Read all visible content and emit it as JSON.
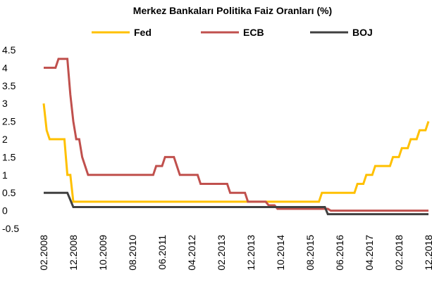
{
  "chart_data": {
    "type": "line",
    "title": "Merkez Bankaları Politika Faiz Oranları (%)",
    "categories": [
      "02.2008",
      null,
      null,
      null,
      null,
      null,
      null,
      null,
      null,
      null,
      "12.2008",
      null,
      null,
      null,
      null,
      null,
      null,
      null,
      null,
      null,
      "10.2009",
      null,
      null,
      null,
      null,
      null,
      null,
      null,
      null,
      null,
      "08.2010",
      null,
      null,
      null,
      null,
      null,
      null,
      null,
      null,
      null,
      "06.2011",
      null,
      null,
      null,
      null,
      null,
      null,
      null,
      null,
      null,
      "04.2012",
      null,
      null,
      null,
      null,
      null,
      null,
      null,
      null,
      null,
      "02.2013",
      null,
      null,
      null,
      null,
      null,
      null,
      null,
      null,
      null,
      "12.2013",
      null,
      null,
      null,
      null,
      null,
      null,
      null,
      null,
      null,
      "10.2014",
      null,
      null,
      null,
      null,
      null,
      null,
      null,
      null,
      null,
      "08.2015",
      null,
      null,
      null,
      null,
      null,
      null,
      null,
      null,
      null,
      "06.2016",
      null,
      null,
      null,
      null,
      null,
      null,
      null,
      null,
      null,
      "04.2017",
      null,
      null,
      null,
      null,
      null,
      null,
      null,
      null,
      null,
      "02.2018",
      null,
      null,
      null,
      null,
      null,
      null,
      null,
      null,
      null,
      "12.2018"
    ],
    "series": [
      {
        "name": "Fed",
        "color": "#ffc000",
        "values": [
          3,
          2.25,
          2,
          2,
          2,
          2,
          2,
          2,
          1,
          1,
          0.25,
          0.25,
          0.25,
          0.25,
          0.25,
          0.25,
          0.25,
          0.25,
          0.25,
          0.25,
          0.25,
          0.25,
          0.25,
          0.25,
          0.25,
          0.25,
          0.25,
          0.25,
          0.25,
          0.25,
          0.25,
          0.25,
          0.25,
          0.25,
          0.25,
          0.25,
          0.25,
          0.25,
          0.25,
          0.25,
          0.25,
          0.25,
          0.25,
          0.25,
          0.25,
          0.25,
          0.25,
          0.25,
          0.25,
          0.25,
          0.25,
          0.25,
          0.25,
          0.25,
          0.25,
          0.25,
          0.25,
          0.25,
          0.25,
          0.25,
          0.25,
          0.25,
          0.25,
          0.25,
          0.25,
          0.25,
          0.25,
          0.25,
          0.25,
          0.25,
          0.25,
          0.25,
          0.25,
          0.25,
          0.25,
          0.25,
          0.25,
          0.25,
          0.25,
          0.25,
          0.25,
          0.25,
          0.25,
          0.25,
          0.25,
          0.25,
          0.25,
          0.25,
          0.25,
          0.25,
          0.25,
          0.25,
          0.25,
          0.25,
          0.5,
          0.5,
          0.5,
          0.5,
          0.5,
          0.5,
          0.5,
          0.5,
          0.5,
          0.5,
          0.5,
          0.5,
          0.75,
          0.75,
          0.75,
          1,
          1,
          1,
          1.25,
          1.25,
          1.25,
          1.25,
          1.25,
          1.25,
          1.5,
          1.5,
          1.5,
          1.75,
          1.75,
          1.75,
          2,
          2,
          2,
          2.25,
          2.25,
          2.25,
          2.5
        ]
      },
      {
        "name": "ECB",
        "color": "#c0504d",
        "values": [
          4,
          4,
          4,
          4,
          4,
          4.25,
          4.25,
          4.25,
          4.25,
          3.25,
          2.5,
          2,
          2,
          1.5,
          1.25,
          1,
          1,
          1,
          1,
          1,
          1,
          1,
          1,
          1,
          1,
          1,
          1,
          1,
          1,
          1,
          1,
          1,
          1,
          1,
          1,
          1,
          1,
          1,
          1.25,
          1.25,
          1.25,
          1.5,
          1.5,
          1.5,
          1.5,
          1.25,
          1,
          1,
          1,
          1,
          1,
          1,
          1,
          0.75,
          0.75,
          0.75,
          0.75,
          0.75,
          0.75,
          0.75,
          0.75,
          0.75,
          0.75,
          0.5,
          0.5,
          0.5,
          0.5,
          0.5,
          0.5,
          0.25,
          0.25,
          0.25,
          0.25,
          0.25,
          0.25,
          0.25,
          0.15,
          0.15,
          0.15,
          0.05,
          0.05,
          0.05,
          0.05,
          0.05,
          0.05,
          0.05,
          0.05,
          0.05,
          0.05,
          0.05,
          0.05,
          0.05,
          0.05,
          0.05,
          0.05,
          0.05,
          0.05,
          0,
          0,
          0,
          0,
          0,
          0,
          0,
          0,
          0,
          0,
          0,
          0,
          0,
          0,
          0,
          0,
          0,
          0,
          0,
          0,
          0,
          0,
          0,
          0,
          0,
          0,
          0,
          0,
          0,
          0,
          0,
          0,
          0,
          0
        ]
      },
      {
        "name": "BOJ",
        "color": "#404040",
        "values": [
          0.5,
          0.5,
          0.5,
          0.5,
          0.5,
          0.5,
          0.5,
          0.5,
          0.5,
          0.3,
          0.1,
          0.1,
          0.1,
          0.1,
          0.1,
          0.1,
          0.1,
          0.1,
          0.1,
          0.1,
          0.1,
          0.1,
          0.1,
          0.1,
          0.1,
          0.1,
          0.1,
          0.1,
          0.1,
          0.1,
          0.1,
          0.1,
          0.1,
          0.1,
          0.1,
          0.1,
          0.1,
          0.1,
          0.1,
          0.1,
          0.1,
          0.1,
          0.1,
          0.1,
          0.1,
          0.1,
          0.1,
          0.1,
          0.1,
          0.1,
          0.1,
          0.1,
          0.1,
          0.1,
          0.1,
          0.1,
          0.1,
          0.1,
          0.1,
          0.1,
          0.1,
          0.1,
          0.1,
          0.1,
          0.1,
          0.1,
          0.1,
          0.1,
          0.1,
          0.1,
          0.1,
          0.1,
          0.1,
          0.1,
          0.1,
          0.1,
          0.1,
          0.1,
          0.1,
          0.1,
          0.1,
          0.1,
          0.1,
          0.1,
          0.1,
          0.1,
          0.1,
          0.1,
          0.1,
          0.1,
          0.1,
          0.1,
          0.1,
          0.1,
          0.1,
          0.1,
          -0.1,
          -0.1,
          -0.1,
          -0.1,
          -0.1,
          -0.1,
          -0.1,
          -0.1,
          -0.1,
          -0.1,
          -0.1,
          -0.1,
          -0.1,
          -0.1,
          -0.1,
          -0.1,
          -0.1,
          -0.1,
          -0.1,
          -0.1,
          -0.1,
          -0.1,
          -0.1,
          -0.1,
          -0.1,
          -0.1,
          -0.1,
          -0.1,
          -0.1,
          -0.1,
          -0.1,
          -0.1,
          -0.1,
          -0.1,
          -0.1
        ]
      }
    ],
    "ylim": [
      -0.5,
      4.5
    ],
    "yticks": [
      -0.5,
      0,
      0.5,
      1,
      1.5,
      2,
      2.5,
      3,
      3.5,
      4,
      4.5
    ],
    "grid": false,
    "legend": "top"
  }
}
